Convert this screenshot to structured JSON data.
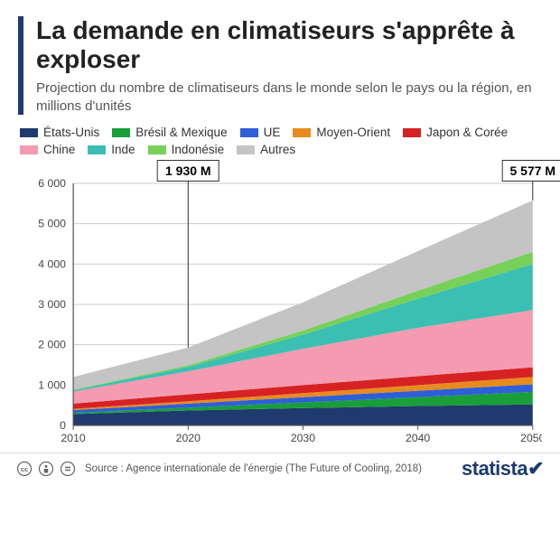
{
  "title": "La demande en climatiseurs s'apprête à exploser",
  "subtitle": "Projection du nombre de climatiseurs dans le monde selon le pays ou la région, en millions d'unités",
  "source": "Source : Agence internationale de l'énergie (The Future of Cooling, 2018)",
  "logo_text": "statista",
  "chart": {
    "type": "area-stacked",
    "x_years": [
      2010,
      2020,
      2030,
      2040,
      2050
    ],
    "x_labels": [
      "2010",
      "2020",
      "2030",
      "2040",
      "2050"
    ],
    "xlim": [
      2010,
      2050
    ],
    "ylim": [
      0,
      6000
    ],
    "ytick_step": 1000,
    "ytick_labels": [
      "0",
      "1 000",
      "2 000",
      "3 000",
      "4 000",
      "5 000",
      "6 000"
    ],
    "background_color": "#ffffff",
    "axis_color": "#555555",
    "grid_color": "#cccccc",
    "tick_fontsize": 12,
    "callouts": [
      {
        "year": 2020,
        "label": "1 930 M",
        "draw_line": true
      },
      {
        "year": 2050,
        "label": "5 577 M",
        "draw_line": true
      }
    ],
    "series": [
      {
        "name": "États-Unis",
        "color": "#1f3a6e",
        "values": [
          280,
          370,
          430,
          480,
          520
        ]
      },
      {
        "name": "Brésil & Mexique",
        "color": "#1a9e3a",
        "values": [
          30,
          70,
          140,
          220,
          310
        ]
      },
      {
        "name": "UE",
        "color": "#2f5fd8",
        "values": [
          70,
          100,
          130,
          160,
          190
        ]
      },
      {
        "name": "Moyen-Orient",
        "color": "#e78b1e",
        "values": [
          30,
          60,
          100,
          140,
          180
        ]
      },
      {
        "name": "Japon & Corée",
        "color": "#d62222",
        "values": [
          130,
          170,
          200,
          220,
          240
        ]
      },
      {
        "name": "Chine",
        "color": "#f49ab1",
        "values": [
          300,
          570,
          900,
          1200,
          1420
        ]
      },
      {
        "name": "Inde",
        "color": "#3bbfb2",
        "values": [
          30,
          110,
          350,
          720,
          1140
        ]
      },
      {
        "name": "Indonésie",
        "color": "#77d05a",
        "values": [
          15,
          40,
          100,
          200,
          300
        ]
      },
      {
        "name": "Autres",
        "color": "#c4c4c4",
        "values": [
          315,
          440,
          700,
          980,
          1277
        ]
      }
    ]
  },
  "layout": {
    "title_fontsize": 28,
    "title_fontweight": 800,
    "title_color": "#222222",
    "accent_bar_color": "#1f3a6e",
    "subtitle_fontsize": 15,
    "subtitle_color": "#555555",
    "legend_fontsize": 13.5,
    "source_fontsize": 11.5,
    "logo_color": "#1f3a6e"
  }
}
